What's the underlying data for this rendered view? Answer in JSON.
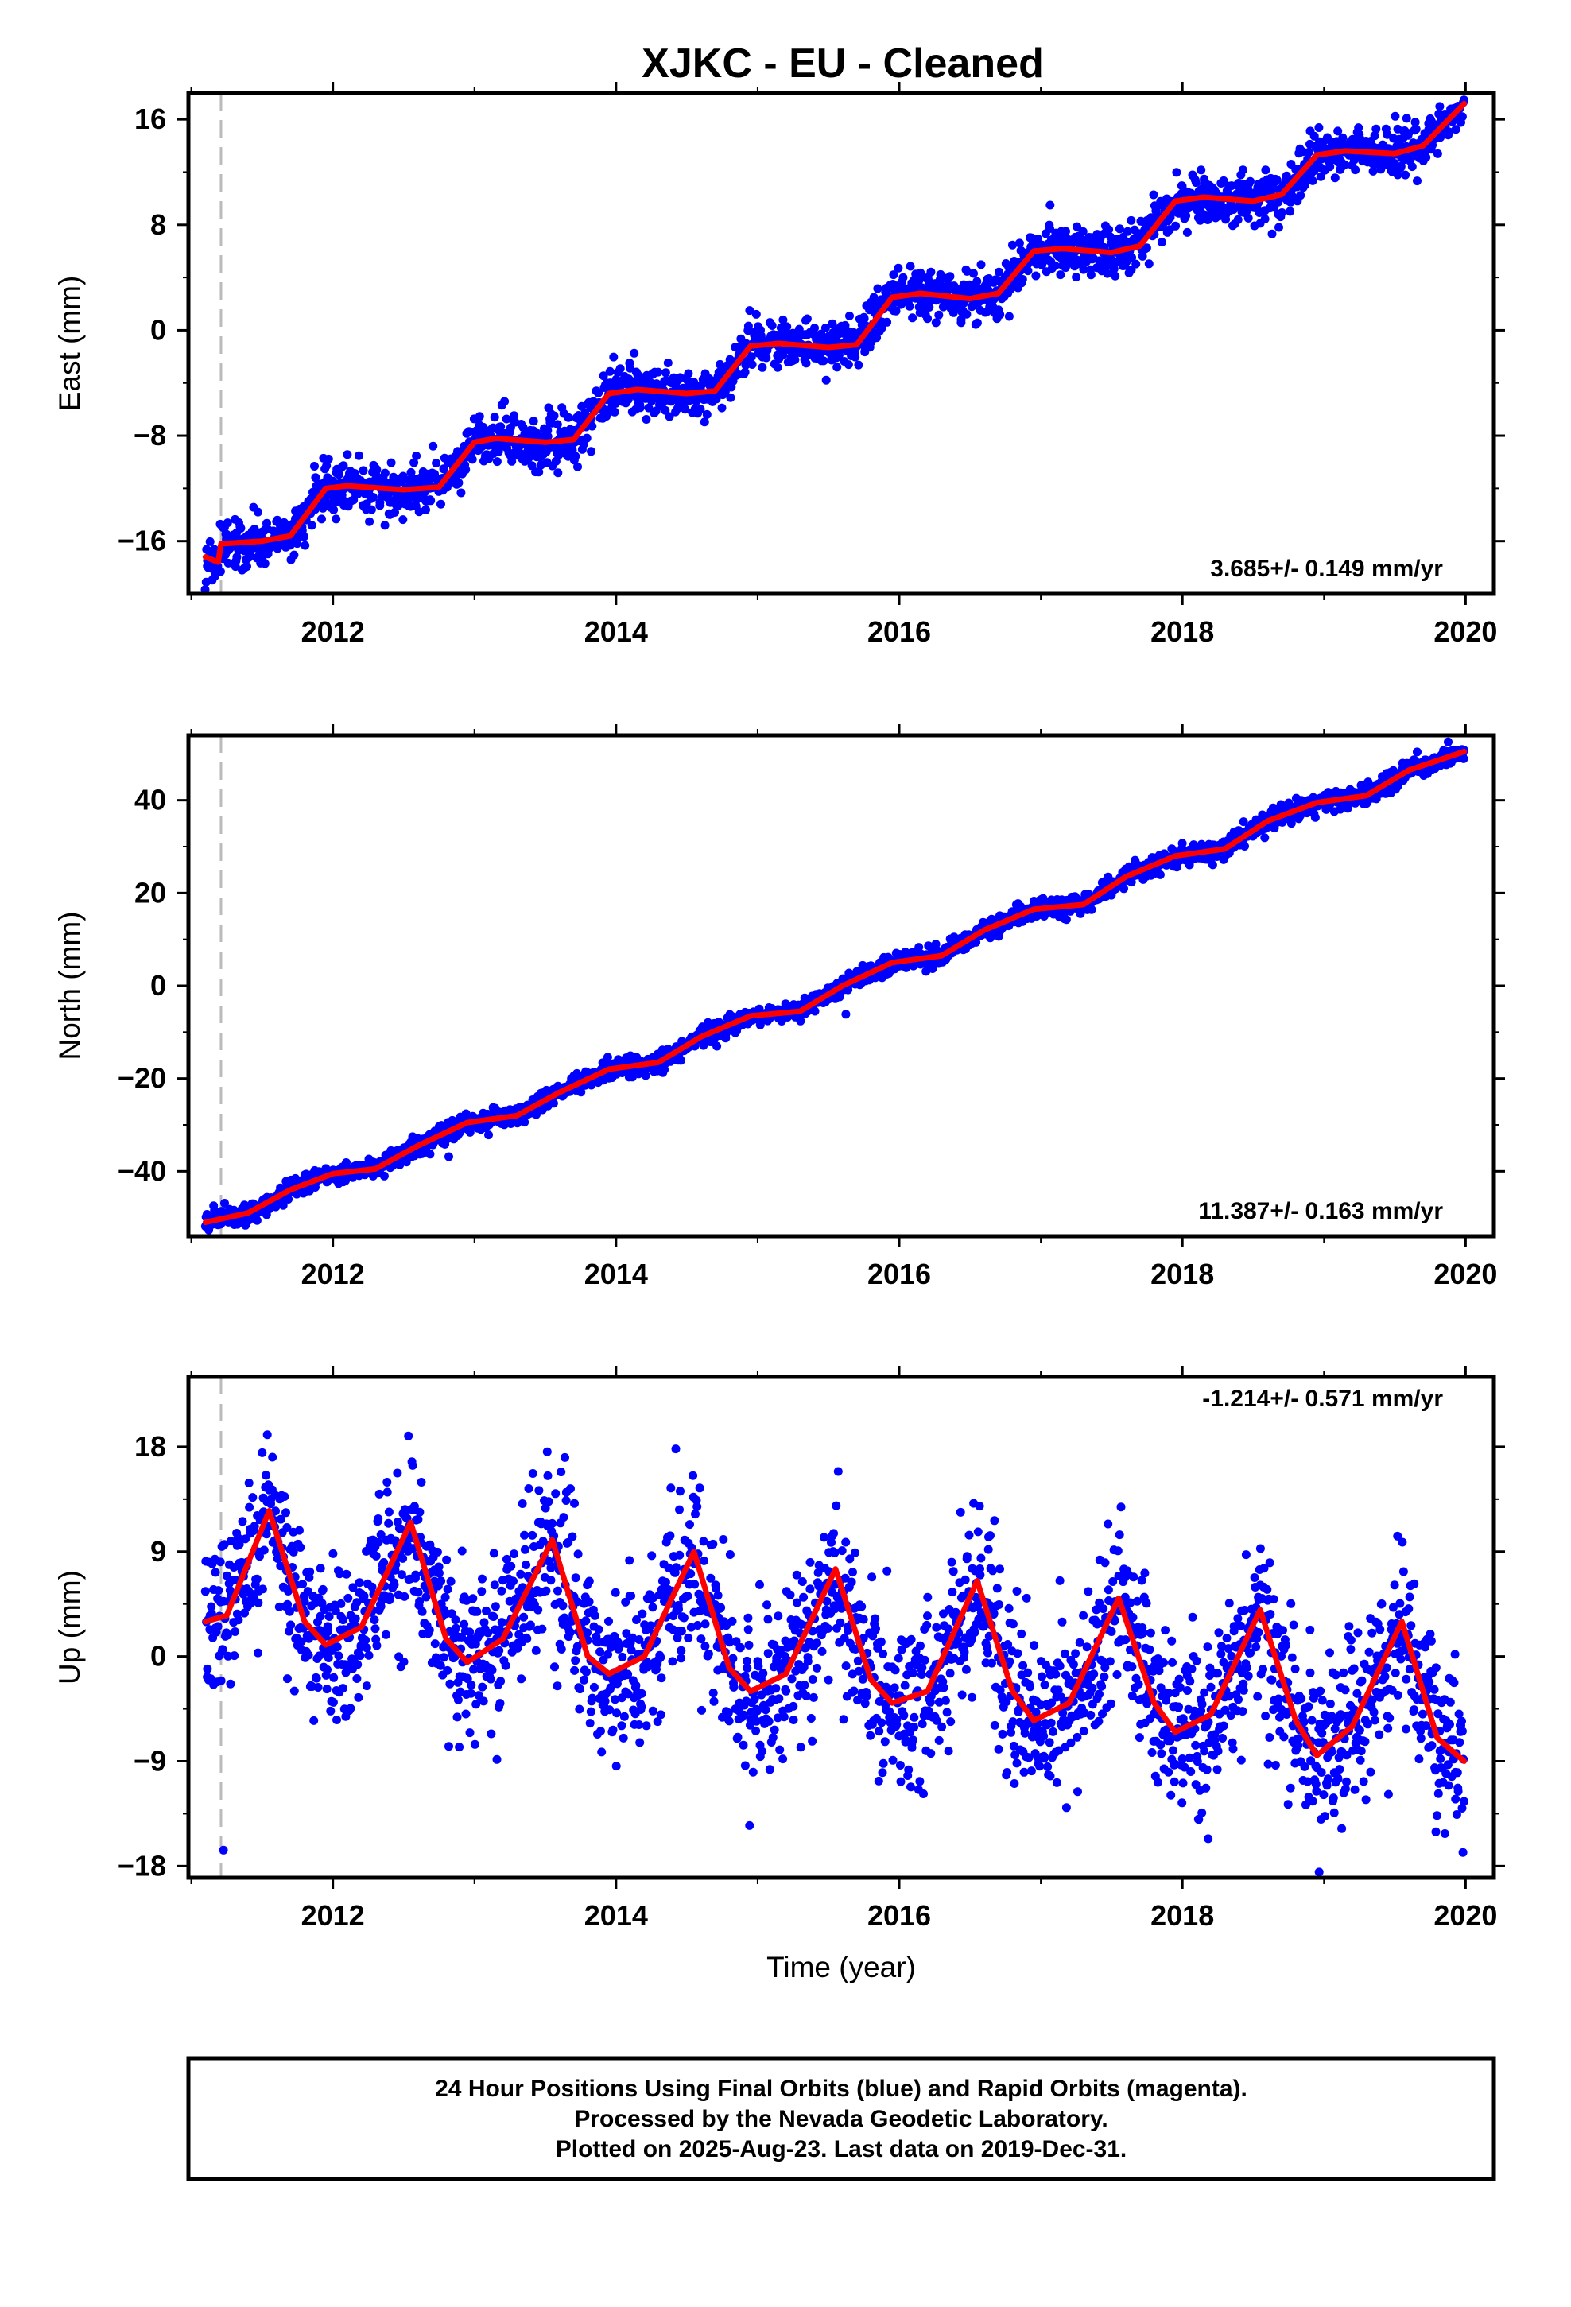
{
  "title": "XJKC  - EU - Cleaned",
  "footer": {
    "lines": [
      "24 Hour Positions Using Final Orbits (blue) and Rapid Orbits (magenta).",
      "Processed by the Nevada Geodetic Laboratory.",
      "Plotted on 2025-Aug-23. Last data on 2019-Dec-31."
    ]
  },
  "colors": {
    "points": "#0000ff",
    "model": "#ff0000",
    "event_line": "#bbbbbb"
  },
  "chart_data": [
    {
      "type": "scatter",
      "component": "East",
      "ylabel": "East (mm)",
      "xlabel": "",
      "xlim": [
        2010.98,
        2020.2
      ],
      "ylim": [
        -20,
        18
      ],
      "xticks": [
        2012,
        2014,
        2016,
        2018,
        2020
      ],
      "yticks": [
        -16,
        -8,
        0,
        8,
        16
      ],
      "rate_text": "3.685+/- 0.149 mm/yr",
      "event_line_x": 2011.21,
      "noise": 0.9,
      "series": [
        {
          "name": "model",
          "x": [
            2011.1,
            2011.19,
            2011.21,
            2011.5,
            2011.7,
            2011.95,
            2012.1,
            2012.5,
            2012.75,
            2013.0,
            2013.15,
            2013.5,
            2013.7,
            2013.95,
            2014.15,
            2014.5,
            2014.7,
            2014.95,
            2015.15,
            2015.5,
            2015.7,
            2015.95,
            2016.15,
            2016.5,
            2016.7,
            2016.95,
            2017.15,
            2017.5,
            2017.7,
            2017.95,
            2018.15,
            2018.5,
            2018.7,
            2018.95,
            2019.15,
            2019.5,
            2019.7,
            2019.99
          ],
          "values": [
            -17.2,
            -17.6,
            -16.2,
            -16.0,
            -15.6,
            -12.0,
            -11.8,
            -12.1,
            -11.9,
            -8.5,
            -8.2,
            -8.5,
            -8.3,
            -4.8,
            -4.5,
            -4.8,
            -4.6,
            -1.2,
            -1.0,
            -1.3,
            -1.1,
            2.5,
            2.8,
            2.4,
            2.8,
            6.0,
            6.2,
            5.9,
            6.4,
            9.8,
            10.1,
            9.8,
            10.3,
            13.3,
            13.6,
            13.4,
            14.0,
            17.2
          ]
        }
      ]
    },
    {
      "type": "scatter",
      "component": "North",
      "ylabel": "North (mm)",
      "xlabel": "",
      "xlim": [
        2010.98,
        2020.2
      ],
      "ylim": [
        -54,
        54
      ],
      "xticks": [
        2012,
        2014,
        2016,
        2018,
        2020
      ],
      "yticks": [
        -40,
        -20,
        0,
        20,
        40
      ],
      "rate_text": "11.387+/- 0.163 mm/yr",
      "event_line_x": 2011.21,
      "noise": 1.0,
      "series": [
        {
          "name": "model",
          "x": [
            2011.1,
            2011.4,
            2011.7,
            2012.0,
            2012.3,
            2012.6,
            2012.95,
            2013.3,
            2013.6,
            2013.95,
            2014.3,
            2014.6,
            2014.95,
            2015.3,
            2015.6,
            2015.95,
            2016.3,
            2016.6,
            2016.95,
            2017.3,
            2017.6,
            2017.95,
            2018.3,
            2018.6,
            2018.95,
            2019.3,
            2019.6,
            2019.99
          ],
          "values": [
            -51,
            -49,
            -44,
            -40.5,
            -39.5,
            -34.5,
            -29.5,
            -28,
            -23,
            -18,
            -16.5,
            -11,
            -6.5,
            -5.5,
            0,
            5,
            6.5,
            12,
            16.5,
            17.5,
            23.5,
            28,
            29.5,
            35.5,
            39.5,
            41,
            46.5,
            50.5
          ]
        }
      ]
    },
    {
      "type": "scatter",
      "component": "Up",
      "ylabel": "Up (mm)",
      "xlabel": "Time (year)",
      "xlim": [
        2010.98,
        2020.2
      ],
      "ylim": [
        -19,
        24
      ],
      "xticks": [
        2012,
        2014,
        2016,
        2018,
        2020
      ],
      "yticks": [
        -18,
        -9,
        0,
        9,
        18
      ],
      "rate_text": "-1.214+/- 0.571 mm/yr",
      "event_line_x": 2011.21,
      "noise": 3.5,
      "series": [
        {
          "name": "model",
          "x": [
            2011.1,
            2011.25,
            2011.55,
            2011.8,
            2011.95,
            2012.2,
            2012.55,
            2012.8,
            2012.95,
            2013.2,
            2013.55,
            2013.8,
            2013.95,
            2014.2,
            2014.55,
            2014.8,
            2014.95,
            2015.2,
            2015.55,
            2015.8,
            2015.95,
            2016.2,
            2016.55,
            2016.8,
            2016.95,
            2017.2,
            2017.55,
            2017.8,
            2017.95,
            2018.2,
            2018.55,
            2018.8,
            2018.95,
            2019.2,
            2019.55,
            2019.8,
            2019.99
          ],
          "values": [
            3,
            3.5,
            12.5,
            3,
            1,
            2.5,
            11.5,
            1.5,
            -0.5,
            1.5,
            10,
            0,
            -1.5,
            0,
            9,
            -1,
            -3,
            -1.5,
            7.5,
            -2,
            -4,
            -3,
            6.5,
            -3,
            -5.5,
            -4,
            5,
            -4,
            -6.5,
            -5,
            4,
            -5.5,
            -8.5,
            -6,
            3,
            -7,
            -9
          ]
        }
      ]
    }
  ]
}
